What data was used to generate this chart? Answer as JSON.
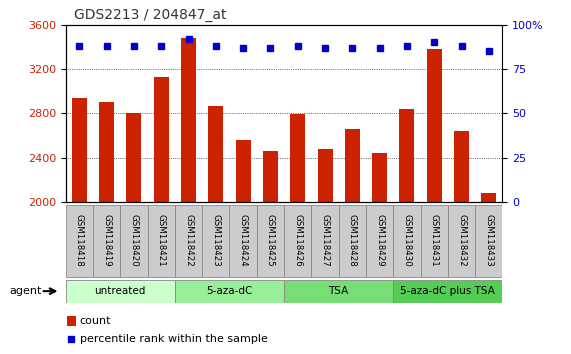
{
  "title": "GDS2213 / 204847_at",
  "samples": [
    "GSM118418",
    "GSM118419",
    "GSM118420",
    "GSM118421",
    "GSM118422",
    "GSM118423",
    "GSM118424",
    "GSM118425",
    "GSM118426",
    "GSM118427",
    "GSM118428",
    "GSM118429",
    "GSM118430",
    "GSM118431",
    "GSM118432",
    "GSM118433"
  ],
  "counts": [
    2940,
    2900,
    2800,
    3130,
    3480,
    2870,
    2560,
    2460,
    2790,
    2480,
    2660,
    2440,
    2840,
    3380,
    2640,
    2080
  ],
  "percentiles": [
    88,
    88,
    88,
    88,
    92,
    88,
    87,
    87,
    88,
    87,
    87,
    87,
    88,
    90,
    88,
    85
  ],
  "bar_color": "#cc2200",
  "dot_color": "#0000cc",
  "ylim_left": [
    2000,
    3600
  ],
  "ylim_right": [
    0,
    100
  ],
  "yticks_left": [
    2000,
    2400,
    2800,
    3200,
    3600
  ],
  "yticks_right": [
    0,
    25,
    50,
    75,
    100
  ],
  "groups": [
    {
      "label": "untreated",
      "start": 0,
      "end": 4,
      "color": "#ccffcc"
    },
    {
      "label": "5-aza-dC",
      "start": 4,
      "end": 8,
      "color": "#99ee99"
    },
    {
      "label": "TSA",
      "start": 8,
      "end": 12,
      "color": "#77dd77"
    },
    {
      "label": "5-aza-dC plus TSA",
      "start": 12,
      "end": 16,
      "color": "#55cc55"
    }
  ],
  "agent_label": "agent",
  "legend_count_label": "count",
  "legend_pct_label": "percentile rank within the sample",
  "bg_color": "#ffffff",
  "plot_bg_color": "#ffffff",
  "tick_label_color_left": "#cc2200",
  "tick_label_color_right": "#0000cc",
  "grid_color": "#000000",
  "title_color": "#333333",
  "xlabel_bg_color": "#cccccc",
  "xlabel_border_color": "#888888"
}
